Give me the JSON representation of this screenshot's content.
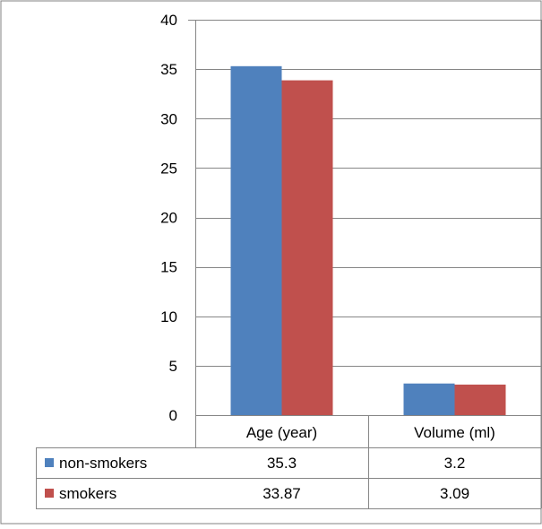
{
  "chart_data": {
    "type": "bar",
    "categories": [
      "Age (year)",
      "Volume (ml)"
    ],
    "series": [
      {
        "name": "non-smokers",
        "values": [
          35.3,
          3.2
        ],
        "color": "#4F81BD"
      },
      {
        "name": "smokers",
        "values": [
          33.87,
          3.09
        ],
        "color": "#C0504D"
      }
    ],
    "data_table": [
      [
        "35.3",
        "3.2"
      ],
      [
        "33.87",
        "3.09"
      ]
    ],
    "ylim": [
      0,
      40
    ],
    "yticks": [
      0,
      5,
      10,
      15,
      20,
      25,
      30,
      35,
      40
    ],
    "grid": true,
    "legend": "data-table-left"
  }
}
